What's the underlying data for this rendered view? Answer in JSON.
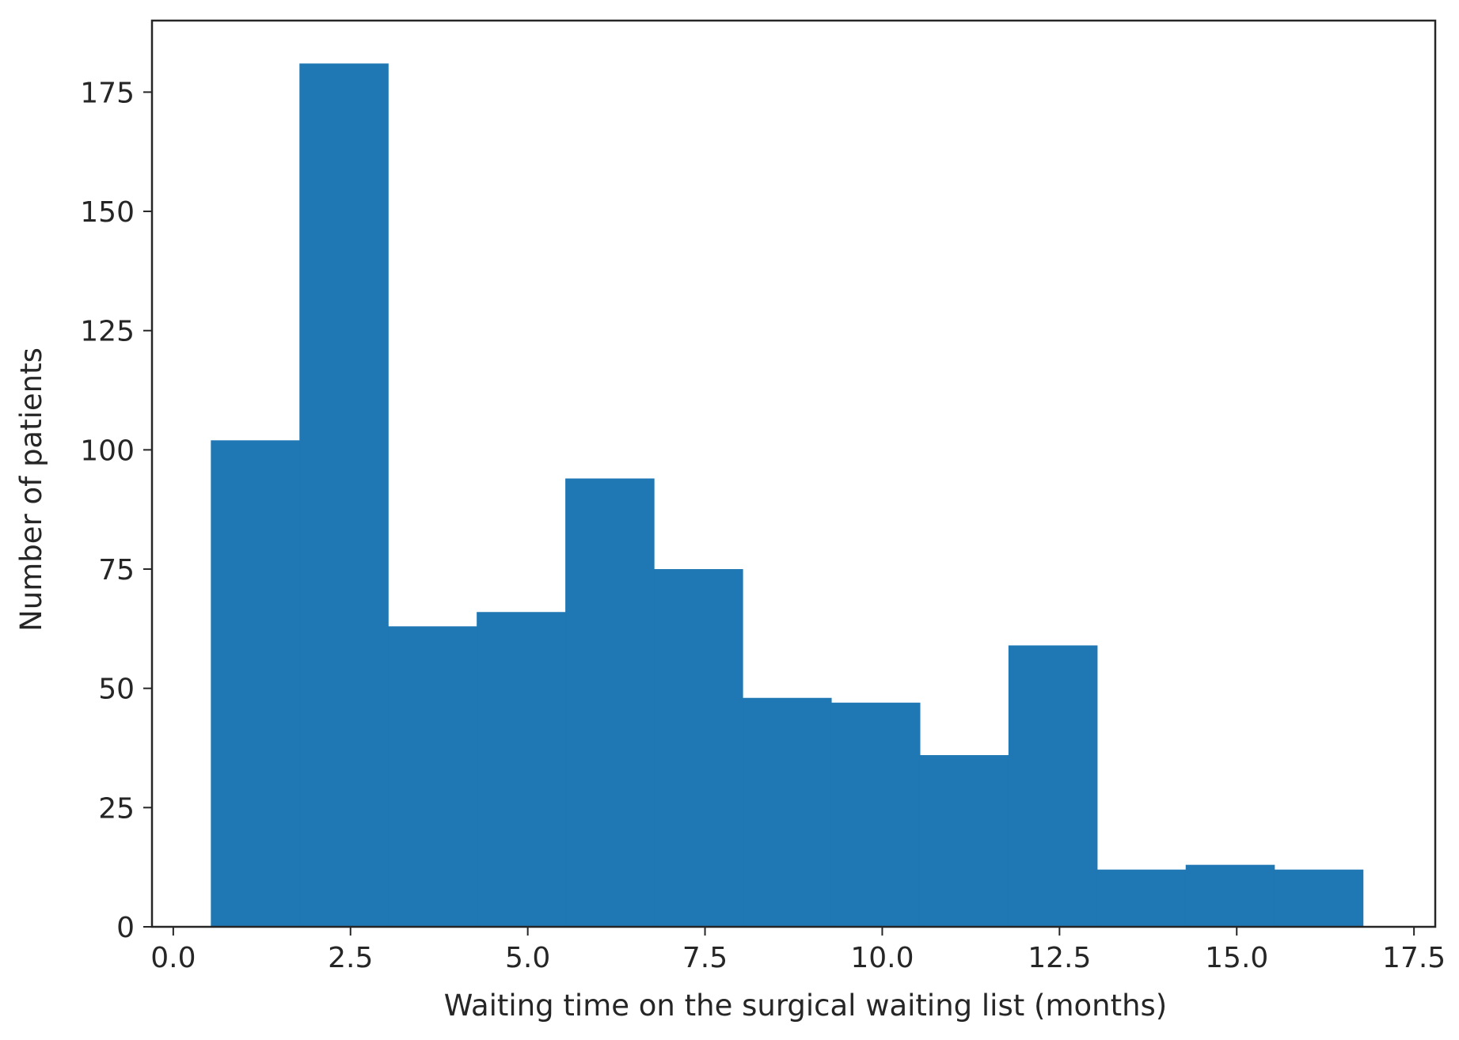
{
  "chart_data": {
    "type": "bar",
    "title": "",
    "xlabel": "Waiting time on the surgical waiting list (months)",
    "ylabel": "Number of patients",
    "xlim": [
      -0.3,
      17.8
    ],
    "ylim": [
      0,
      190
    ],
    "xticks": [
      0.0,
      2.5,
      5.0,
      7.5,
      10.0,
      12.5,
      15.0,
      17.5
    ],
    "xtick_labels": [
      "0.0",
      "2.5",
      "5.0",
      "7.5",
      "10.0",
      "12.5",
      "15.0",
      "17.5"
    ],
    "yticks": [
      0,
      25,
      50,
      75,
      100,
      125,
      150,
      175
    ],
    "ytick_labels": [
      "0",
      "25",
      "50",
      "75",
      "100",
      "125",
      "150",
      "175"
    ],
    "bin_edges": [
      0.53,
      1.78,
      3.03,
      4.28,
      5.53,
      6.78,
      8.03,
      9.28,
      10.53,
      11.78,
      13.03,
      14.28,
      15.53,
      16.78
    ],
    "values": [
      102,
      181,
      63,
      66,
      94,
      75,
      48,
      47,
      36,
      59,
      12,
      13,
      12
    ],
    "bar_color": "#1f77b4",
    "grid": false,
    "legend": "none"
  }
}
